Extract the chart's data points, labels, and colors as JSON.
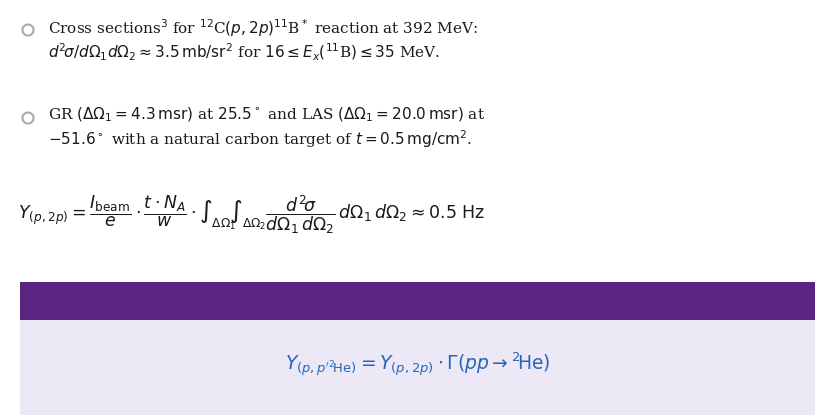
{
  "bg_color": "#ffffff",
  "bullet_color": "#aaaaaa",
  "text_color": "#1a1a1a",
  "purple_bar_color": "#5b2480",
  "lavender_bg_color": "#ede8f5",
  "blue_eq_color": "#2266bb",
  "figsize": [
    8.35,
    4.2
  ],
  "dpi": 100
}
